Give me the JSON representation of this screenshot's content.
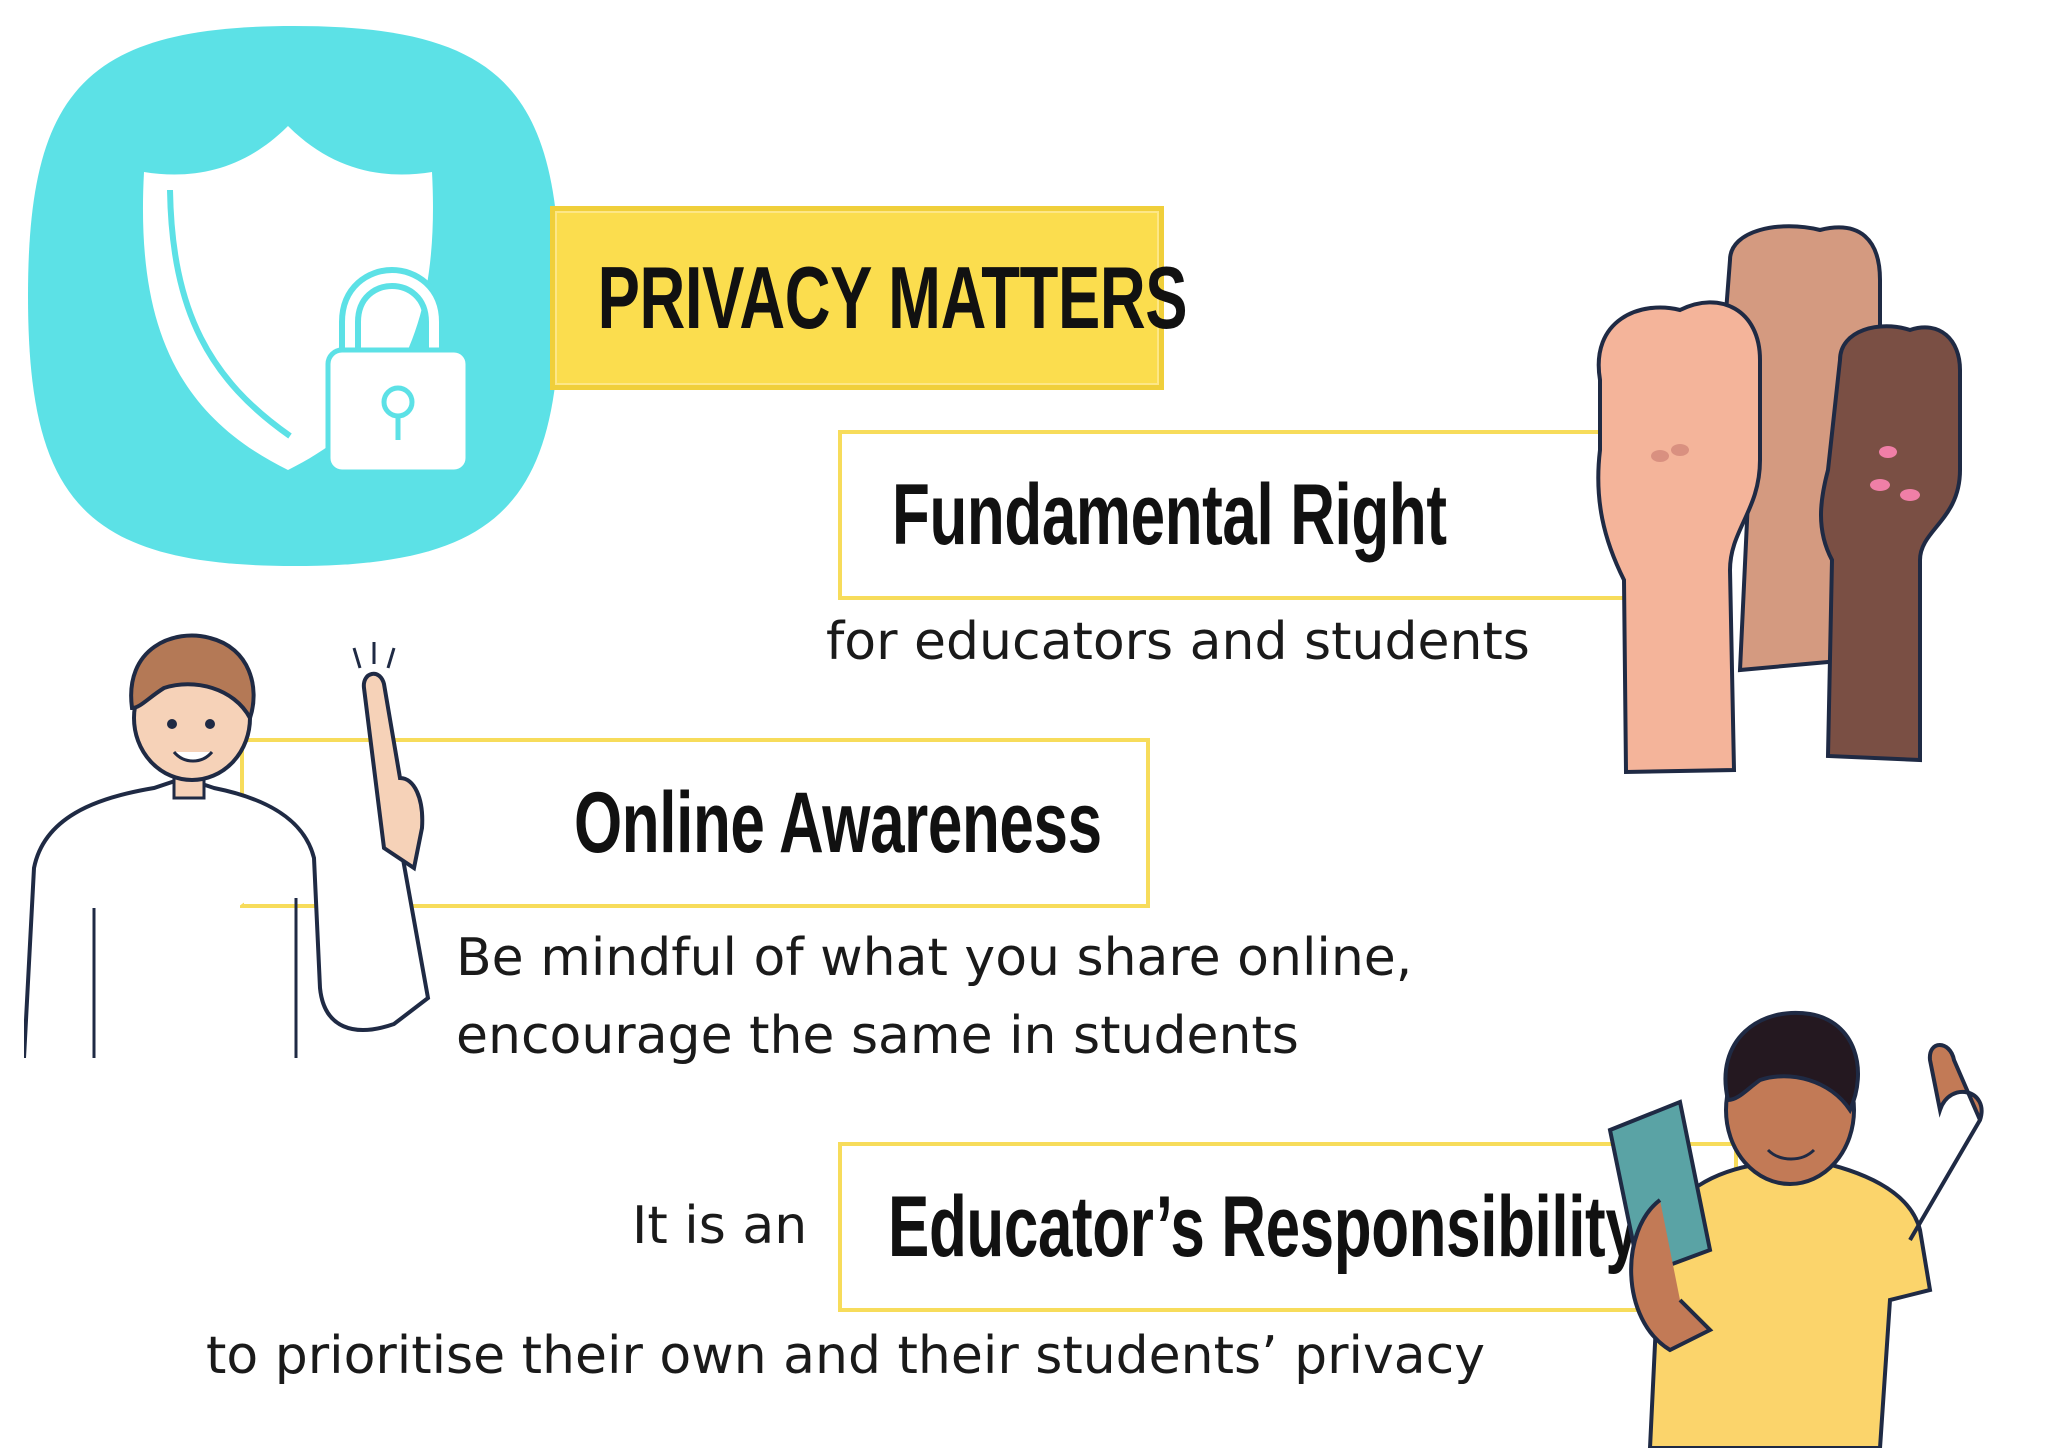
{
  "header": {
    "title": "PRIVACY MATTERS"
  },
  "sections": {
    "fundamental_right": {
      "heading": "Fundamental Right",
      "caption": "for educators and students"
    },
    "online_awareness": {
      "heading": "Online Awareness",
      "caption_line1": "Be mindful of what you share online,",
      "caption_line2": "encourage the same in students"
    },
    "responsibility": {
      "prefix": "It is an",
      "heading": "Educator’s Responsibility",
      "caption": "to prioritise their own and their students’ privacy"
    }
  },
  "icons": {
    "shield": "shield-lock-icon",
    "fists": "raised-fists-illustration",
    "pointer": "man-pointing-illustration",
    "teacher": "teacher-with-book-illustration"
  },
  "colors": {
    "accent_yellow": "#fbdd4e",
    "shield_bg": "#5ce1e6",
    "text": "#111111"
  }
}
